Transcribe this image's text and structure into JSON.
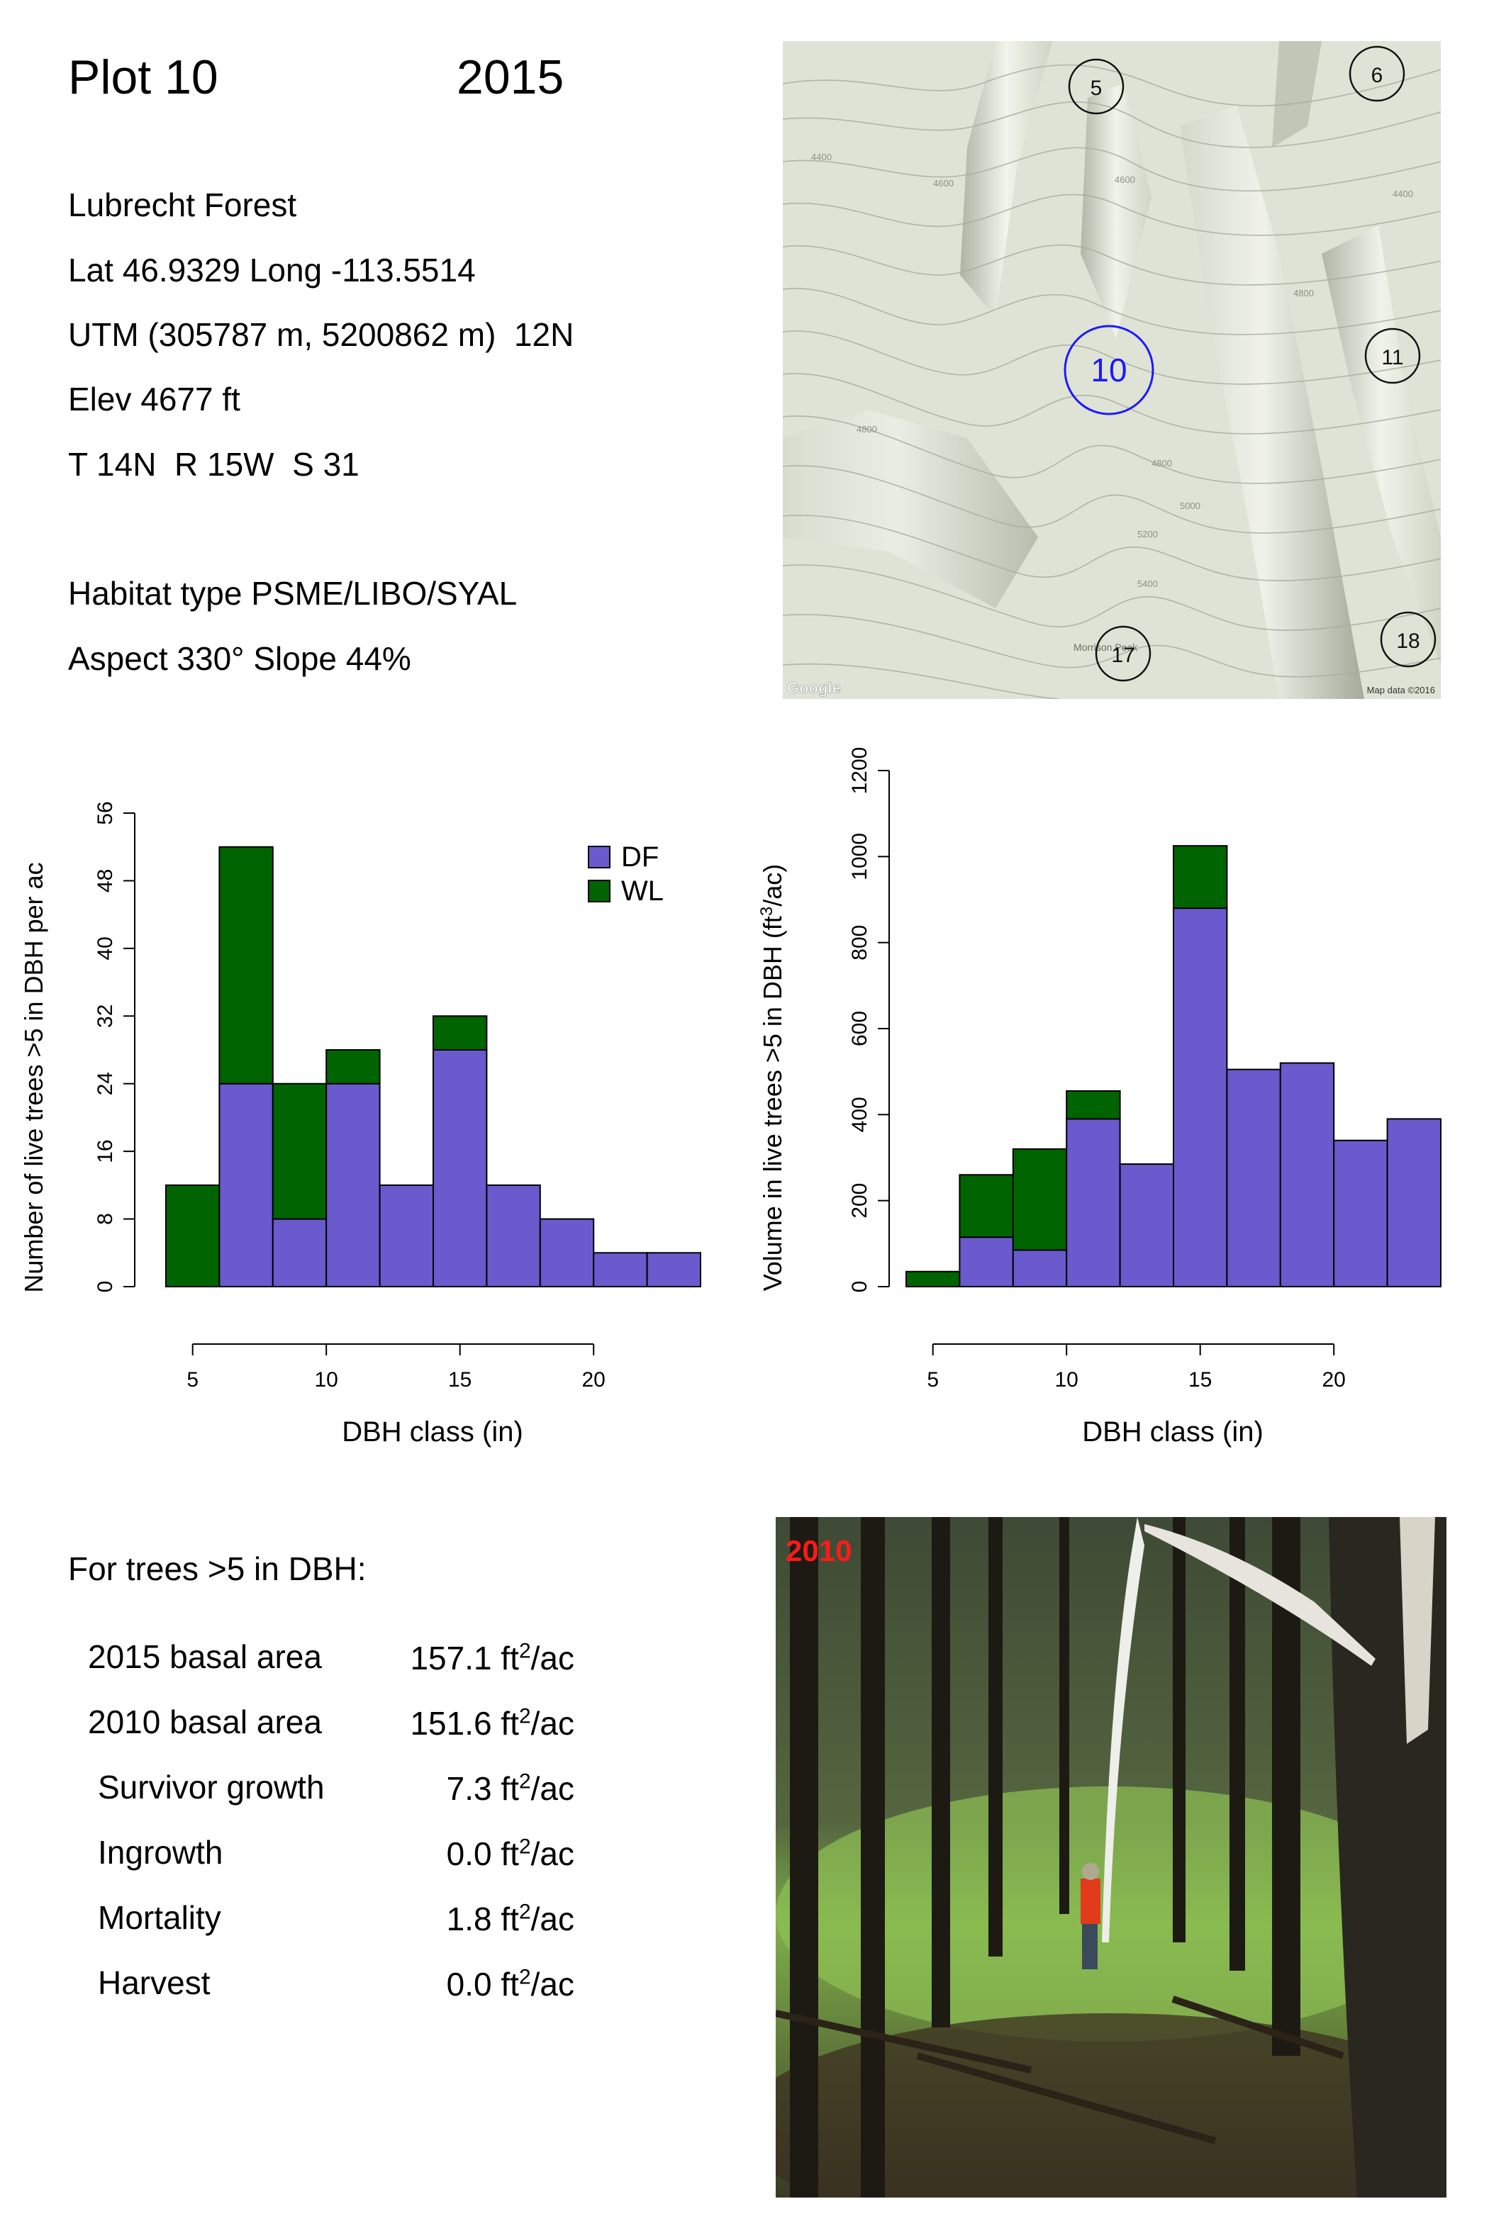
{
  "header": {
    "plot": "Plot 10",
    "year": "2015"
  },
  "site": {
    "forest": "Lubrecht Forest",
    "latlong": "Lat 46.9329 Long -113.5514",
    "utm": "UTM (305787 m, 5200862 m)  12N",
    "elev": "Elev 4677 ft",
    "trs": "T 14N  R 15W  S 31",
    "habitat": "Habitat type PSME/LIBO/SYAL",
    "aspect": "Aspect 330° Slope 44%"
  },
  "map": {
    "plots": [
      {
        "label": "5",
        "current": false
      },
      {
        "label": "6",
        "current": false
      },
      {
        "label": "10",
        "current": true
      },
      {
        "label": "11",
        "current": false
      },
      {
        "label": "17",
        "current": false
      },
      {
        "label": "18",
        "current": false
      }
    ],
    "contour_labels": [
      "4400",
      "4600",
      "4800",
      "4800",
      "5000",
      "5200",
      "5400",
      "4600",
      "4800",
      "4400"
    ],
    "place_label": "Morrison Peak",
    "google": "Google",
    "credit": "Map data ©2016",
    "colors": {
      "background": "#dfe3d6",
      "current_plot": "#1a1aff"
    }
  },
  "chart_data": [
    {
      "type": "bar",
      "stacked": true,
      "xlabel": "DBH class (in)",
      "ylabel": "Number of live trees >5 in DBH per ac",
      "x_bins": [
        [
          4,
          6
        ],
        [
          6,
          8
        ],
        [
          8,
          10
        ],
        [
          10,
          12
        ],
        [
          12,
          14
        ],
        [
          14,
          16
        ],
        [
          16,
          18
        ],
        [
          18,
          20
        ],
        [
          20,
          22
        ],
        [
          22,
          24
        ]
      ],
      "x_ticks": [
        5,
        10,
        15,
        20
      ],
      "ylim": [
        0,
        56
      ],
      "y_ticks": [
        0,
        8,
        16,
        24,
        32,
        40,
        48,
        56
      ],
      "legend": "top-right",
      "series": [
        {
          "name": "DF",
          "color": "#6a5acd",
          "values": [
            0,
            24,
            8,
            24,
            12,
            28,
            12,
            8,
            4,
            4
          ]
        },
        {
          "name": "WL",
          "color": "#006400",
          "values": [
            12,
            28,
            16,
            4,
            0,
            4,
            0,
            0,
            0,
            0
          ]
        }
      ]
    },
    {
      "type": "bar",
      "stacked": true,
      "xlabel": "DBH class (in)",
      "ylabel": "Volume in live trees >5 in DBH (ft",
      "ylabel_sup": "3",
      "ylabel_end": "/ac)",
      "x_bins": [
        [
          4,
          6
        ],
        [
          6,
          8
        ],
        [
          8,
          10
        ],
        [
          10,
          12
        ],
        [
          12,
          14
        ],
        [
          14,
          16
        ],
        [
          16,
          18
        ],
        [
          18,
          20
        ],
        [
          20,
          22
        ],
        [
          22,
          24
        ]
      ],
      "x_ticks": [
        5,
        10,
        15,
        20
      ],
      "ylim": [
        0,
        1200
      ],
      "y_ticks": [
        0,
        200,
        400,
        600,
        800,
        1000,
        1200
      ],
      "series": [
        {
          "name": "DF",
          "color": "#6a5acd",
          "values": [
            0,
            115,
            85,
            390,
            285,
            880,
            505,
            520,
            340,
            390
          ]
        },
        {
          "name": "WL",
          "color": "#006400",
          "values": [
            35,
            145,
            235,
            65,
            0,
            145,
            0,
            0,
            0,
            0
          ]
        }
      ]
    }
  ],
  "growth": {
    "title": "For trees >5 in DBH:",
    "unit_pre": "ft",
    "unit_sup": "2",
    "unit_post": "/ac",
    "rows": [
      {
        "label": "2015 basal area",
        "value": "157.1"
      },
      {
        "label": "2010 basal area",
        "value": "151.6"
      },
      {
        "label": "Survivor growth",
        "value": "7.3"
      },
      {
        "label": "Ingrowth",
        "value": "0.0"
      },
      {
        "label": "Mortality",
        "value": "1.8"
      },
      {
        "label": "Harvest",
        "value": "0.0"
      }
    ]
  },
  "photo": {
    "year_label": "2010",
    "label_color": "#ff1a1a"
  }
}
